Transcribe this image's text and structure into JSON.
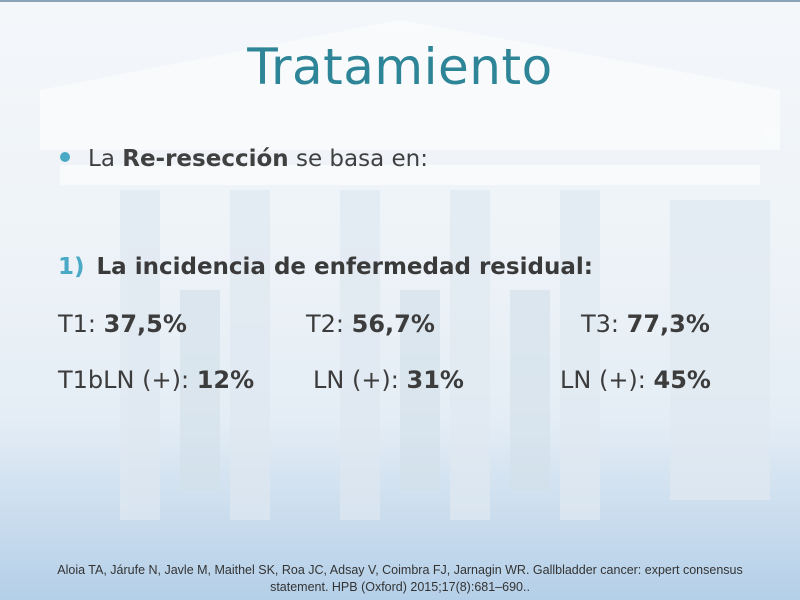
{
  "slide": {
    "title": "Tratamiento",
    "bullet": {
      "prefix": "La ",
      "bold": "Re-resección",
      "suffix": " se basa en:"
    },
    "point": {
      "number": "1)",
      "text": "La incidencia de enfermedad residual:"
    },
    "rows": [
      [
        {
          "label": "T1:",
          "value": "37,5%"
        },
        {
          "label": "T2:",
          "value": "56,7%"
        },
        {
          "label": "T3:",
          "value": "77,3%"
        }
      ],
      [
        {
          "label": "T1bLN (+):",
          "value": "12%"
        },
        {
          "label": "LN (+):",
          "value": "31%"
        },
        {
          "label": "LN (+):",
          "value": "45%"
        }
      ]
    ],
    "footnote": {
      "line1": "Aloia TA, Járufe N, Javle M, Maithel SK, Roa JC, Adsay V, Coimbra FJ, Jarnagin WR. Gallbladder cancer: expert consensus",
      "line2": "statement. HPB (Oxford) 2015;17(8):681–690.."
    },
    "colors": {
      "title": "#2e8597",
      "accent": "#4aa9c4",
      "text": "#3c3c3c"
    },
    "background_icon": "building-facade-watermark"
  }
}
